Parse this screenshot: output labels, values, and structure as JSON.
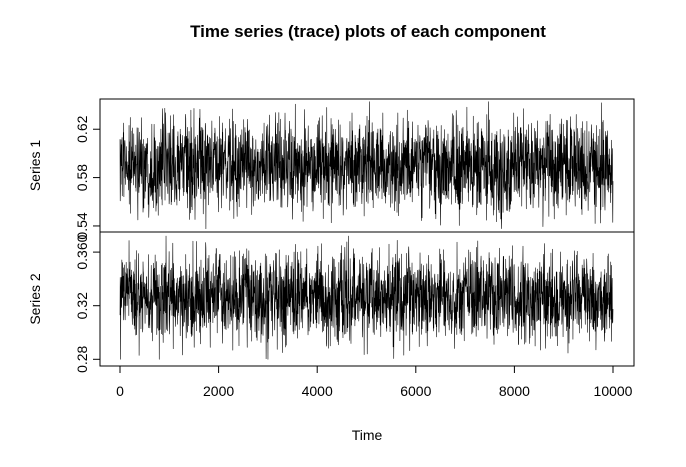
{
  "chart_data": {
    "type": "line",
    "title": "Time series (trace) plots of each component",
    "xlabel": "Time",
    "xlim": [
      0,
      10000
    ],
    "xticks": [
      0,
      2000,
      4000,
      6000,
      8000,
      10000
    ],
    "n_points": 10000,
    "series": [
      {
        "name": "Series 1",
        "ylabel": "Series 1",
        "ylim": [
          0.535,
          0.645
        ],
        "yticks": [
          0.54,
          0.58,
          0.62
        ],
        "ytick_labels": [
          "0.54",
          "0.58",
          "0.62"
        ],
        "mean": 0.59,
        "typical_range": [
          0.555,
          0.625
        ],
        "observed_range": [
          0.536,
          0.643
        ]
      },
      {
        "name": "Series 2",
        "ylabel": "Series 2",
        "ylim": [
          0.275,
          0.375
        ],
        "yticks": [
          0.28,
          0.32,
          0.36
        ],
        "ytick_labels": [
          "0.28",
          "0.32",
          "0.360"
        ],
        "mean": 0.326,
        "typical_range": [
          0.296,
          0.356
        ],
        "observed_range": [
          0.28,
          0.372
        ]
      }
    ]
  }
}
